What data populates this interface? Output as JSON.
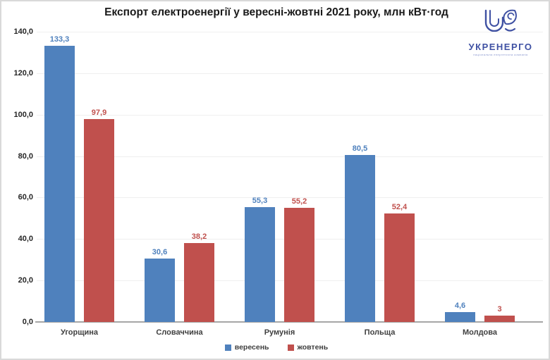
{
  "title": "Експорт електроенергії у вересні-жовтні 2021 року, млн кВт·год",
  "logo": {
    "brand": "УКРЕНЕРГО",
    "tagline": "національна енергетична компанія",
    "color": "#3f51a3"
  },
  "chart_data": {
    "type": "bar",
    "title": "Експорт електроенергії у вересні-жовтні 2021 року, млн кВт·год",
    "categories": [
      "Угорщина",
      "Словаччина",
      "Румунія",
      "Польща",
      "Молдова"
    ],
    "series": [
      {
        "name": "вересень",
        "color": "#4f81bd",
        "values": [
          133.3,
          30.6,
          55.3,
          80.5,
          4.6
        ],
        "labels": [
          "133,3",
          "30,6",
          "55,3",
          "80,5",
          "4,6"
        ]
      },
      {
        "name": "жовтень",
        "color": "#c0504d",
        "values": [
          97.9,
          38.2,
          55.2,
          52.4,
          3
        ],
        "labels": [
          "97,9",
          "38,2",
          "55,2",
          "52,4",
          "3"
        ]
      }
    ],
    "ylabel": "",
    "xlabel": "",
    "ylim": [
      0,
      140
    ],
    "yticks": [
      "140,0",
      "120,0",
      "100,0",
      "80,0",
      "60,0",
      "40,0",
      "20,0",
      "0,0"
    ],
    "grid": true,
    "legend_position": "bottom"
  }
}
